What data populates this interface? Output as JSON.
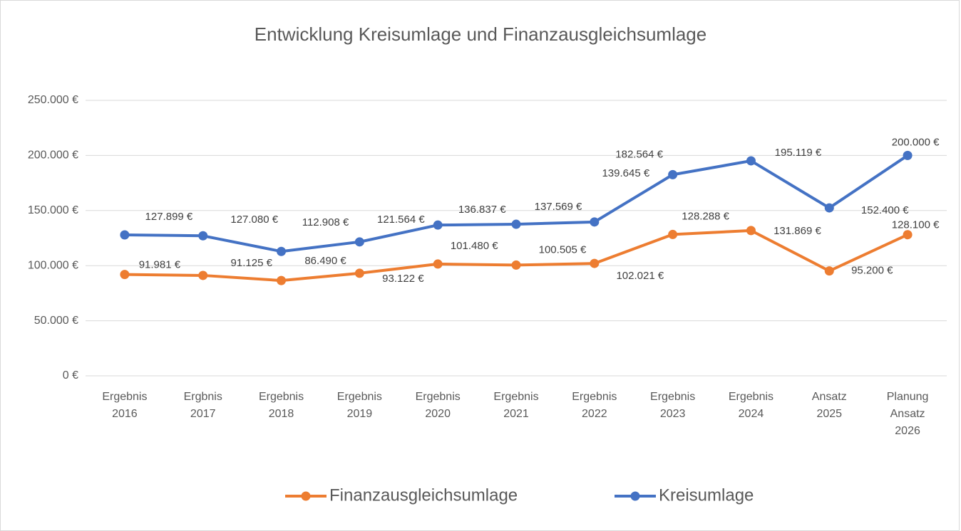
{
  "chart_data": {
    "type": "line",
    "title": "Entwicklung Kreisumlage und Finanzausgleichsumlage",
    "categories": [
      "Ergebnis 2016",
      "Ergbnis 2017",
      "Ergebnis 2018",
      "Ergebnis 2019",
      "Ergebnis 2020",
      "Ergebnis 2021",
      "Ergebnis 2022",
      "Ergebnis 2023",
      "Ergebnis 2024",
      "Ansatz 2025",
      "Planung Ansatz 2026"
    ],
    "series": [
      {
        "name": "Finanzausgleichsumlage",
        "color": "#ed7d31",
        "values": [
          91981,
          91125,
          86490,
          93122,
          101480,
          100505,
          102021,
          128288,
          131869,
          95200,
          128100
        ],
        "value_labels": [
          "91.981 €",
          "91.125 €",
          "86.490 €",
          "93.122 €",
          "101.480 €",
          "100.505 €",
          "102.021 €",
          "128.288 €",
          "131.869 €",
          "95.200 €",
          "128.100 €"
        ]
      },
      {
        "name": "Kreisumlage",
        "color": "#4472c4",
        "values": [
          127899,
          127080,
          112908,
          121564,
          136837,
          137569,
          139645,
          182564,
          195119,
          152400,
          200000
        ],
        "value_labels": [
          "127.899 €",
          "127.080 €",
          "112.908 €",
          "121.564 €",
          "136.837 €",
          "137.569 €",
          "139.645 €",
          "182.564 €",
          "195.119 €",
          "152.400 €",
          "200.000 €"
        ]
      }
    ],
    "ylim": [
      0,
      250000
    ],
    "yticks": [
      {
        "value": 0,
        "label": "0 €"
      },
      {
        "value": 50000,
        "label": "50.000 €"
      },
      {
        "value": 100000,
        "label": "100.000 €"
      },
      {
        "value": 150000,
        "label": "150.000 €"
      },
      {
        "value": 200000,
        "label": "200.000 €"
      },
      {
        "value": 250000,
        "label": "250.000 €"
      }
    ],
    "grid": true,
    "legend": "bottom"
  }
}
